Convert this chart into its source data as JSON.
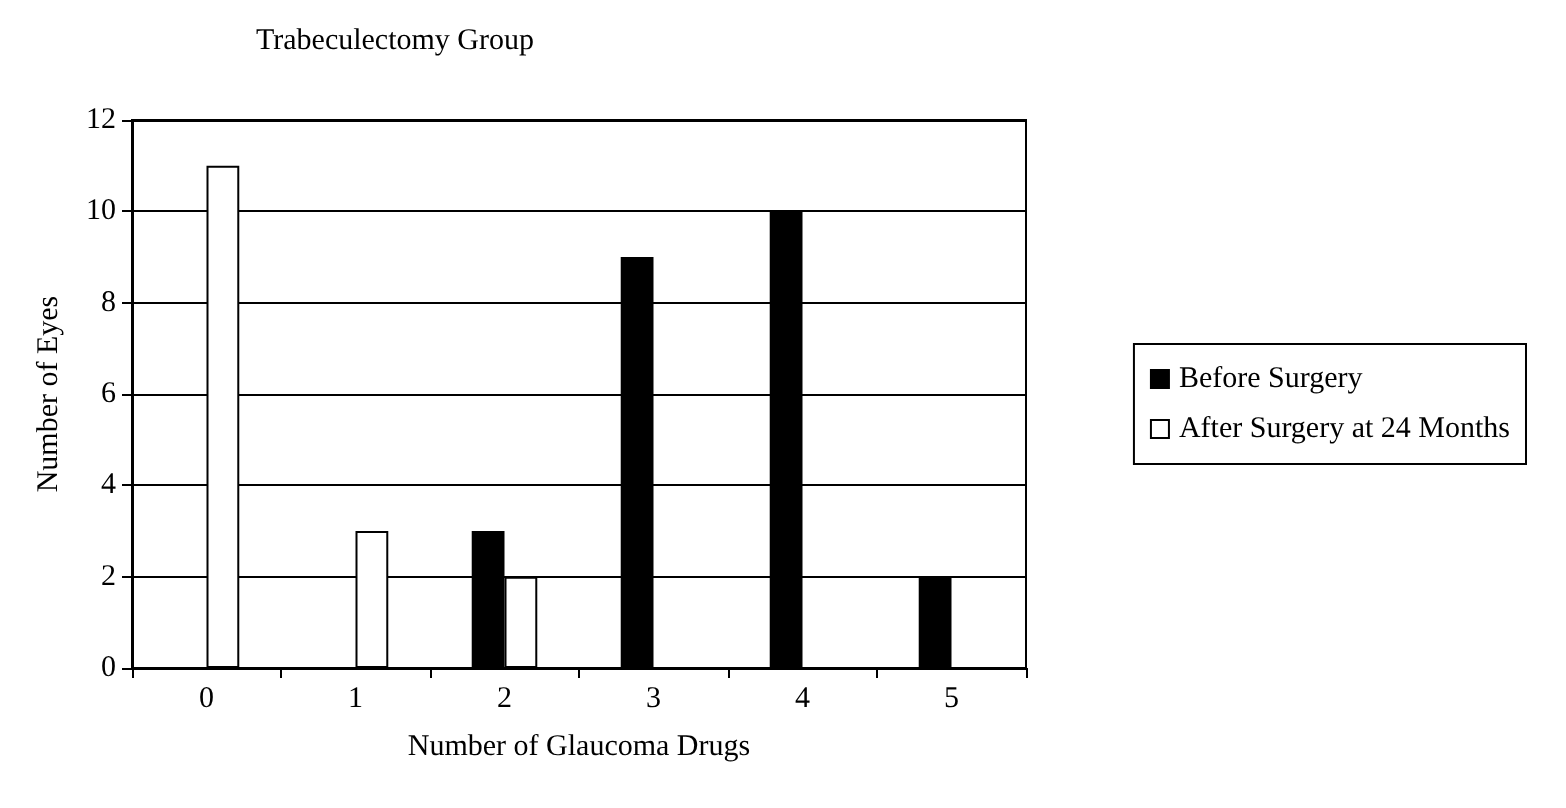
{
  "chart_data": {
    "type": "bar",
    "title": "Trabeculectomy Group",
    "xlabel": "Number of Glaucoma Drugs",
    "ylabel": "Number of Eyes",
    "categories": [
      "0",
      "1",
      "2",
      "3",
      "4",
      "5"
    ],
    "series": [
      {
        "name": "Before Surgery",
        "color": "#000000",
        "values": [
          0,
          0,
          3,
          9,
          10,
          2
        ]
      },
      {
        "name": "After Surgery at 24 Months",
        "color": "#ffffff",
        "values": [
          11,
          3,
          2,
          0,
          0,
          0
        ]
      }
    ],
    "ylim": [
      0,
      12
    ],
    "yticks": [
      0,
      2,
      4,
      6,
      8,
      10,
      12
    ],
    "grid": "y",
    "legend": "right"
  }
}
